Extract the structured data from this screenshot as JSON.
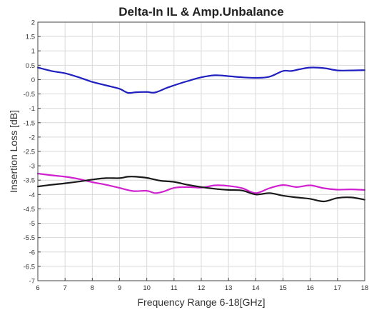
{
  "chart_data": {
    "type": "line",
    "title": "Delta-In IL & Amp.Unbalance",
    "xlabel": "Frequency Range 6-18[GHz]",
    "ylabel": "Insertion Loss [dB]",
    "xlim": [
      6,
      18
    ],
    "ylim": [
      -7,
      2
    ],
    "x_ticks": [
      6,
      7,
      8,
      9,
      10,
      11,
      12,
      13,
      14,
      15,
      16,
      17,
      18
    ],
    "y_ticks": [
      2,
      1.5,
      1,
      0.5,
      0,
      -0.5,
      -1,
      -1.5,
      -2,
      -2.5,
      -3,
      -3.5,
      -4,
      -4.5,
      -5,
      -5.5,
      -6,
      -6.5,
      -7
    ],
    "grid": true,
    "series": [
      {
        "color": "#2020c0",
        "x": [
          6,
          6.5,
          7,
          7.5,
          8,
          8.5,
          9,
          9.3,
          9.6,
          10,
          10.3,
          10.7,
          11,
          11.5,
          12,
          12.5,
          13,
          13.5,
          14,
          14.5,
          15,
          15.3,
          15.6,
          16,
          16.5,
          17,
          17.5,
          18
        ],
        "y": [
          0.42,
          0.3,
          0.22,
          0.08,
          -0.08,
          -0.2,
          -0.32,
          -0.46,
          -0.44,
          -0.43,
          -0.45,
          -0.3,
          -0.2,
          -0.05,
          0.08,
          0.15,
          0.12,
          0.08,
          0.06,
          0.1,
          0.3,
          0.3,
          0.36,
          0.42,
          0.4,
          0.32,
          0.32,
          0.33
        ]
      },
      {
        "color": "#d020d0",
        "x": [
          6,
          6.5,
          7,
          7.5,
          8,
          8.5,
          9,
          9.5,
          10,
          10.3,
          10.6,
          11,
          11.5,
          12,
          12.5,
          13,
          13.5,
          14,
          14.5,
          15,
          15.5,
          16,
          16.5,
          17,
          17.5,
          18
        ],
        "y": [
          -3.27,
          -3.33,
          -3.38,
          -3.46,
          -3.57,
          -3.66,
          -3.77,
          -3.88,
          -3.87,
          -3.95,
          -3.9,
          -3.77,
          -3.74,
          -3.76,
          -3.68,
          -3.7,
          -3.78,
          -3.95,
          -3.78,
          -3.67,
          -3.74,
          -3.68,
          -3.78,
          -3.83,
          -3.82,
          -3.84
        ]
      },
      {
        "color": "#1a1a1a",
        "x": [
          6,
          6.5,
          7,
          7.5,
          8,
          8.5,
          9,
          9.3,
          9.6,
          10,
          10.5,
          11,
          11.5,
          12,
          12.5,
          13,
          13.5,
          14,
          14.5,
          15,
          15.5,
          16,
          16.5,
          17,
          17.5,
          18
        ],
        "y": [
          -3.72,
          -3.66,
          -3.61,
          -3.55,
          -3.48,
          -3.43,
          -3.43,
          -3.38,
          -3.38,
          -3.42,
          -3.52,
          -3.56,
          -3.66,
          -3.74,
          -3.8,
          -3.84,
          -3.86,
          -4.0,
          -3.95,
          -4.04,
          -4.1,
          -4.15,
          -4.24,
          -4.12,
          -4.1,
          -4.18
        ]
      }
    ]
  }
}
